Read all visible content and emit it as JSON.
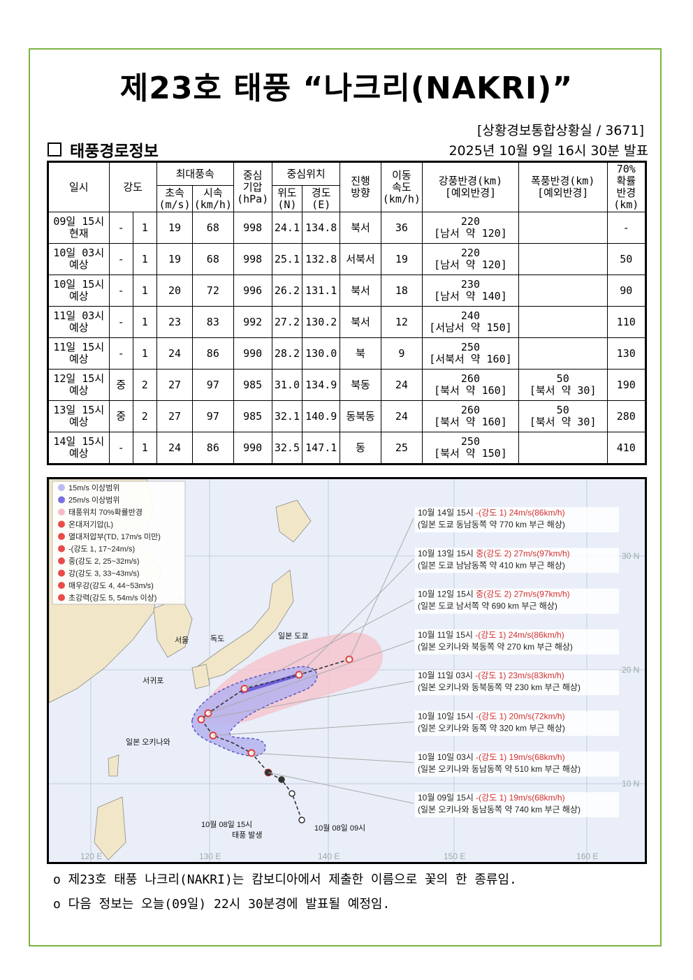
{
  "title": "제23호 태풍 “나크리(NAKRI)”",
  "source": "[상황경보통합상황실 / 3671]",
  "section_title": "태풍경로정보",
  "issued": "2025년 10월 9일 16시 30분 발표",
  "headers": {
    "datetime": "일시",
    "intensity": "강도",
    "max_wind": "최대풍속",
    "ms": "초속",
    "ms_unit": "(m/s)",
    "kmh": "시속",
    "kmh_unit": "(km/h)",
    "pressure": "중심",
    "pressure2": "기압",
    "pressure_unit": "(hPa)",
    "center": "중심위치",
    "lat": "위도",
    "lat_unit": "(N)",
    "lon": "경도",
    "lon_unit": "(E)",
    "dir": "진행",
    "dir2": "방향",
    "speed": "이동",
    "speed2": "속도",
    "speed_unit": "(km/h)",
    "gale": "강풍반경(km)",
    "gale2": "[예외반경]",
    "storm": "폭풍반경(km)",
    "storm2": "[예외반경]",
    "prob": "70%",
    "prob2": "확률",
    "prob3": "반경",
    "prob_unit": "(km)"
  },
  "rows": [
    {
      "d1": "09일 15시",
      "d2": "현재",
      "cls": "-",
      "lvl": "1",
      "ms": "19",
      "kmh": "68",
      "hpa": "998",
      "lat": "24.1",
      "lon": "134.8",
      "dir": "북서",
      "spd": "36",
      "gale": "220",
      "gale_ex": "[남서 약 120]",
      "storm": "",
      "storm_ex": "",
      "prob": "-"
    },
    {
      "d1": "10일 03시",
      "d2": "예상",
      "cls": "-",
      "lvl": "1",
      "ms": "19",
      "kmh": "68",
      "hpa": "998",
      "lat": "25.1",
      "lon": "132.8",
      "dir": "서북서",
      "spd": "19",
      "gale": "220",
      "gale_ex": "[남서 약 120]",
      "storm": "",
      "storm_ex": "",
      "prob": "50"
    },
    {
      "d1": "10일 15시",
      "d2": "예상",
      "cls": "-",
      "lvl": "1",
      "ms": "20",
      "kmh": "72",
      "hpa": "996",
      "lat": "26.2",
      "lon": "131.1",
      "dir": "북서",
      "spd": "18",
      "gale": "230",
      "gale_ex": "[남서 약 140]",
      "storm": "",
      "storm_ex": "",
      "prob": "90"
    },
    {
      "d1": "11일 03시",
      "d2": "예상",
      "cls": "-",
      "lvl": "1",
      "ms": "23",
      "kmh": "83",
      "hpa": "992",
      "lat": "27.2",
      "lon": "130.2",
      "dir": "북서",
      "spd": "12",
      "gale": "240",
      "gale_ex": "[서남서 약 150]",
      "storm": "",
      "storm_ex": "",
      "prob": "110"
    },
    {
      "d1": "11일 15시",
      "d2": "예상",
      "cls": "-",
      "lvl": "1",
      "ms": "24",
      "kmh": "86",
      "hpa": "990",
      "lat": "28.2",
      "lon": "130.0",
      "dir": "북",
      "spd": "9",
      "gale": "250",
      "gale_ex": "[서북서 약 160]",
      "storm": "",
      "storm_ex": "",
      "prob": "130"
    },
    {
      "d1": "12일 15시",
      "d2": "예상",
      "cls": "중",
      "lvl": "2",
      "ms": "27",
      "kmh": "97",
      "hpa": "985",
      "lat": "31.0",
      "lon": "134.9",
      "dir": "북동",
      "spd": "24",
      "gale": "260",
      "gale_ex": "[북서 약 160]",
      "storm": "50",
      "storm_ex": "[북서 약 30]",
      "prob": "190"
    },
    {
      "d1": "13일 15시",
      "d2": "예상",
      "cls": "중",
      "lvl": "2",
      "ms": "27",
      "kmh": "97",
      "hpa": "985",
      "lat": "32.1",
      "lon": "140.9",
      "dir": "동북동",
      "spd": "24",
      "gale": "260",
      "gale_ex": "[북서 약 160]",
      "storm": "50",
      "storm_ex": "[북서 약 30]",
      "prob": "280"
    },
    {
      "d1": "14일 15시",
      "d2": "예상",
      "cls": "-",
      "lvl": "1",
      "ms": "24",
      "kmh": "86",
      "hpa": "990",
      "lat": "32.5",
      "lon": "147.1",
      "dir": "동",
      "spd": "25",
      "gale": "250",
      "gale_ex": "[북서 약 150]",
      "storm": "",
      "storm_ex": "",
      "prob": "410"
    }
  ],
  "map": {
    "legend": [
      {
        "label": "15m/s 이상범위",
        "color": "#b7b3f0"
      },
      {
        "label": "25m/s 이상범위",
        "color": "#6b5fe0"
      },
      {
        "label": "태풍위치 70%확률반경",
        "color": "#f2b6c1"
      },
      {
        "label": "온대저기압(L)",
        "color": "#e53935"
      },
      {
        "label": "열대저압부(TD, 17m/s 미만)",
        "color": "#e53935"
      },
      {
        "label": "-(강도 1, 17~24m/s)",
        "color": "#e53935"
      },
      {
        "label": "중(강도 2, 25~32m/s)",
        "color": "#e53935"
      },
      {
        "label": "강(강도 3, 33~43m/s)",
        "color": "#e53935"
      },
      {
        "label": "매우강(강도 4, 44~53m/s)",
        "color": "#e53935"
      },
      {
        "label": "초강력(강도 5, 54m/s 이상)",
        "color": "#e53935"
      }
    ],
    "places": {
      "dokdo": "독도",
      "seoul": "서울",
      "seogwipo": "서귀포",
      "tokyo": "일본 도쿄",
      "okinawa": "일본 오키나와"
    },
    "lon_labels": [
      "120 E",
      "130 E",
      "140 E",
      "150 E",
      "160 E"
    ],
    "lat_labels": [
      "30 N",
      "20 N",
      "10 N"
    ],
    "genesis": {
      "line1": "10월 08일 15시",
      "line2": "태풍 발생"
    },
    "start": "10월 08일 09시",
    "callouts": [
      {
        "t": "10월 14일 15시 ",
        "s": "-(강도 1) 24m/s(86km/h)",
        "d": "(일본 도쿄 동남동쪽 약 770 km 부근 해상)"
      },
      {
        "t": "10월 13일 15시 ",
        "s": "중(강도 2) 27m/s(97km/h)",
        "d": "(일본 도쿄 남남동쪽 약 410 km 부근 해상)"
      },
      {
        "t": "10월 12일 15시 ",
        "s": "중(강도 2) 27m/s(97km/h)",
        "d": "(일본 도쿄 남서쪽 약 690 km 부근 해상)"
      },
      {
        "t": "10월 11일 15시 ",
        "s": "-(강도 1) 24m/s(86km/h)",
        "d": "(일본 오키나와 북동쪽 약 270 km 부근 해상)"
      },
      {
        "t": "10월 11일 03시 ",
        "s": "-(강도 1) 23m/s(83km/h)",
        "d": "(일본 오키나와 동북동쪽 약 230 km 부근 해상)"
      },
      {
        "t": "10월 10일 15시 ",
        "s": "-(강도 1) 20m/s(72km/h)",
        "d": "(일본 오키나와 동쪽 약 320 km 부근 해상)"
      },
      {
        "t": "10월 10일 03시 ",
        "s": "-(강도 1) 19m/s(68km/h)",
        "d": "(일본 오키나와 동남동쪽 약 510 km 부근 해상)"
      },
      {
        "t": "10월 09일 15시 ",
        "s": "-(강도 1) 19m/s(68km/h)",
        "d": "(일본 오키나와 동남동쪽 약 740 km 부근 해상)"
      }
    ]
  },
  "notes": [
    "o 제23호 태풍 나크리(NAKRI)는 캄보디아에서 제출한 이름으로 꽃의 한 종류임.",
    "o 다음 정보는 오늘(09일) 22시 30분경에 발표될 예정임."
  ]
}
